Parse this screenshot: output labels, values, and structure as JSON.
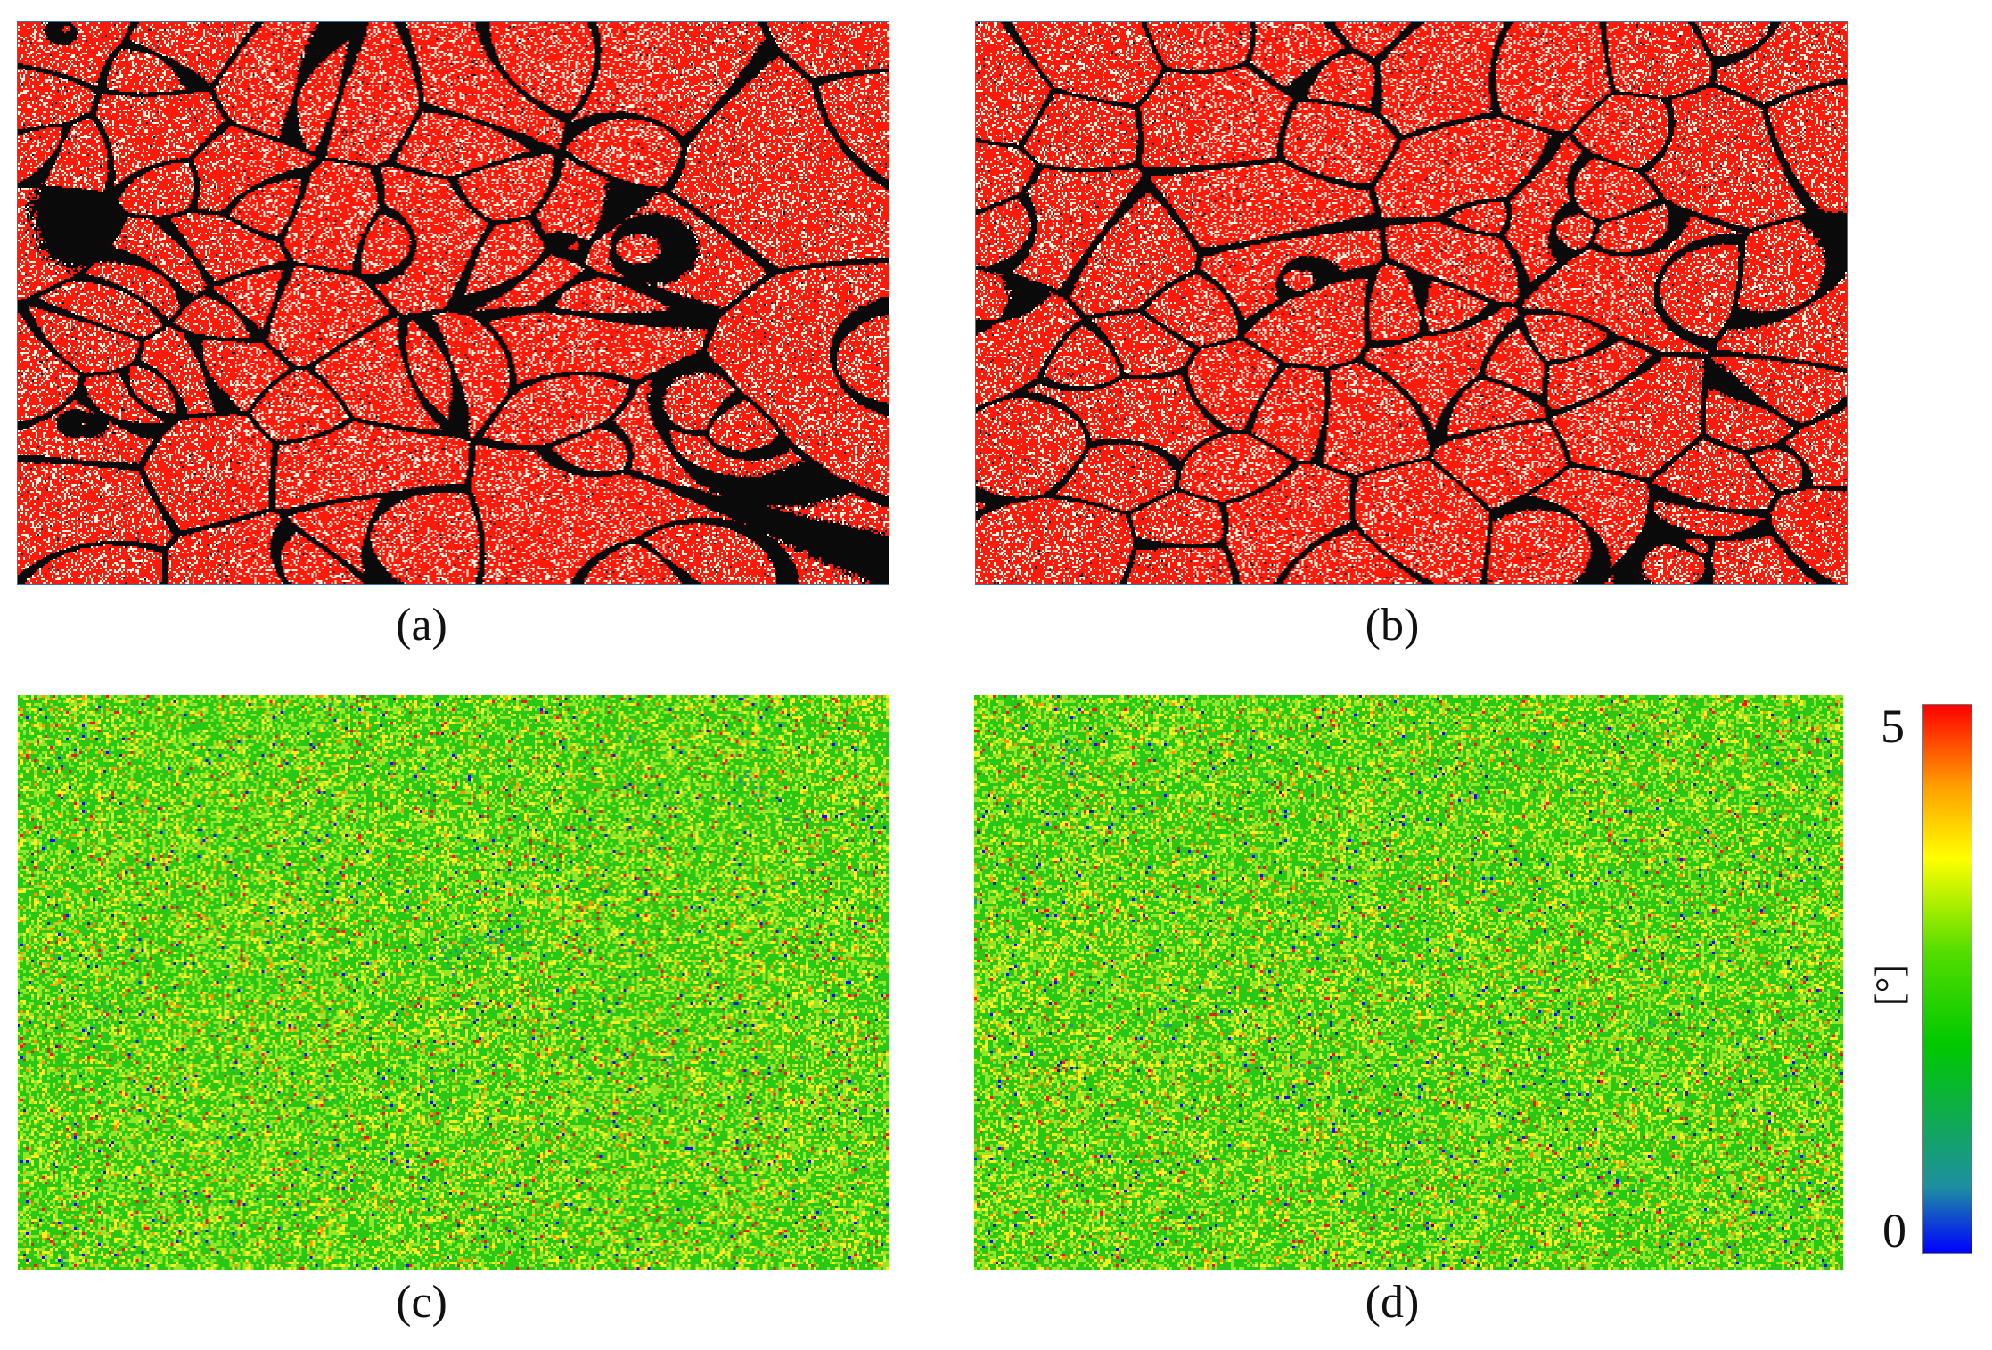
{
  "panels": [
    {
      "id": "a",
      "caption": "(a)",
      "kind": "grain-boundary-map",
      "colors": {
        "fill": "#ff1a0a",
        "spots": "#fff6e6",
        "boundary": "#0a0a0a"
      }
    },
    {
      "id": "b",
      "caption": "(b)",
      "kind": "grain-boundary-map",
      "colors": {
        "fill": "#ff1a0a",
        "spots": "#fff6e6",
        "boundary": "#0a0a0a"
      }
    },
    {
      "id": "c",
      "caption": "(c)",
      "kind": "misorientation-map"
    },
    {
      "id": "d",
      "caption": "(d)",
      "kind": "misorientation-map"
    }
  ],
  "colorbar": {
    "max_label": "5",
    "min_label": "0",
    "unit_label": "[°]",
    "colors": [
      "#0000ff",
      "#1e8fa0",
      "#00c800",
      "#55dd00",
      "#ffff00",
      "#ffa000",
      "#ff0000"
    ]
  }
}
